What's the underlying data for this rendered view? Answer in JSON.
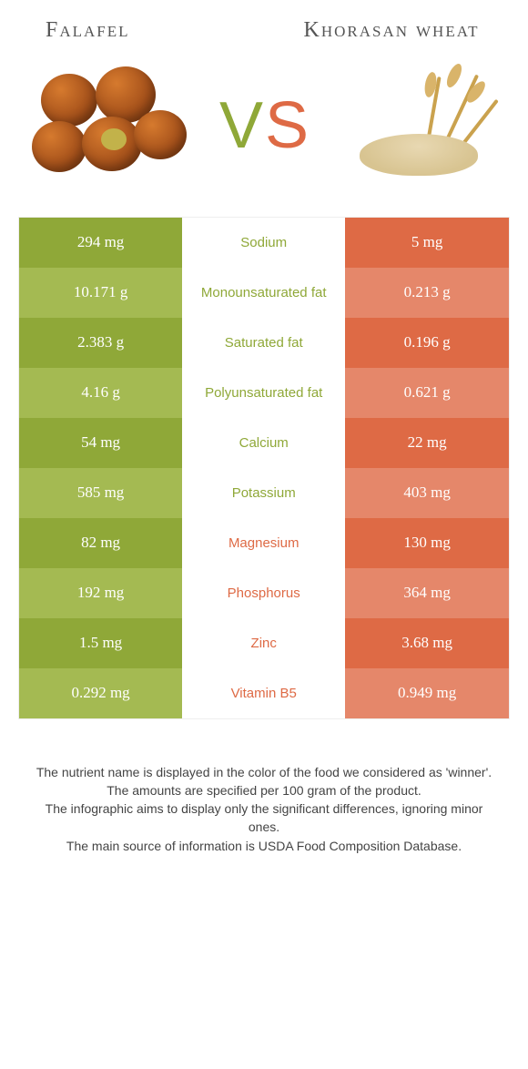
{
  "header": {
    "left_title": "Falafel",
    "right_title": "Khorasan wheat"
  },
  "vs": {
    "v": "V",
    "s": "S"
  },
  "colors": {
    "left_odd": "#8fa838",
    "left_even": "#a4ba52",
    "right_odd": "#de6a45",
    "right_even": "#e5876a",
    "text_green": "#8fa838",
    "text_orange": "#de6a45",
    "background": "#ffffff"
  },
  "table": {
    "rows": [
      {
        "left": "294 mg",
        "label": "Sodium",
        "right": "5 mg",
        "winner": "left"
      },
      {
        "left": "10.171 g",
        "label": "Monounsaturated fat",
        "right": "0.213 g",
        "winner": "left"
      },
      {
        "left": "2.383 g",
        "label": "Saturated fat",
        "right": "0.196 g",
        "winner": "left"
      },
      {
        "left": "4.16 g",
        "label": "Polyunsaturated fat",
        "right": "0.621 g",
        "winner": "left"
      },
      {
        "left": "54 mg",
        "label": "Calcium",
        "right": "22 mg",
        "winner": "left"
      },
      {
        "left": "585 mg",
        "label": "Potassium",
        "right": "403 mg",
        "winner": "left"
      },
      {
        "left": "82 mg",
        "label": "Magnesium",
        "right": "130 mg",
        "winner": "right"
      },
      {
        "left": "192 mg",
        "label": "Phosphorus",
        "right": "364 mg",
        "winner": "right"
      },
      {
        "left": "1.5 mg",
        "label": "Zinc",
        "right": "3.68 mg",
        "winner": "right"
      },
      {
        "left": "0.292 mg",
        "label": "Vitamin B5",
        "right": "0.949 mg",
        "winner": "right"
      }
    ]
  },
  "footnotes": {
    "line1": "The nutrient name is displayed in the color of the food we considered as 'winner'.",
    "line2": "The amounts are specified per 100 gram of the product.",
    "line3": "The infographic aims to display only the significant differences, ignoring minor ones.",
    "line4": "The main source of information is USDA Food Composition Database."
  }
}
